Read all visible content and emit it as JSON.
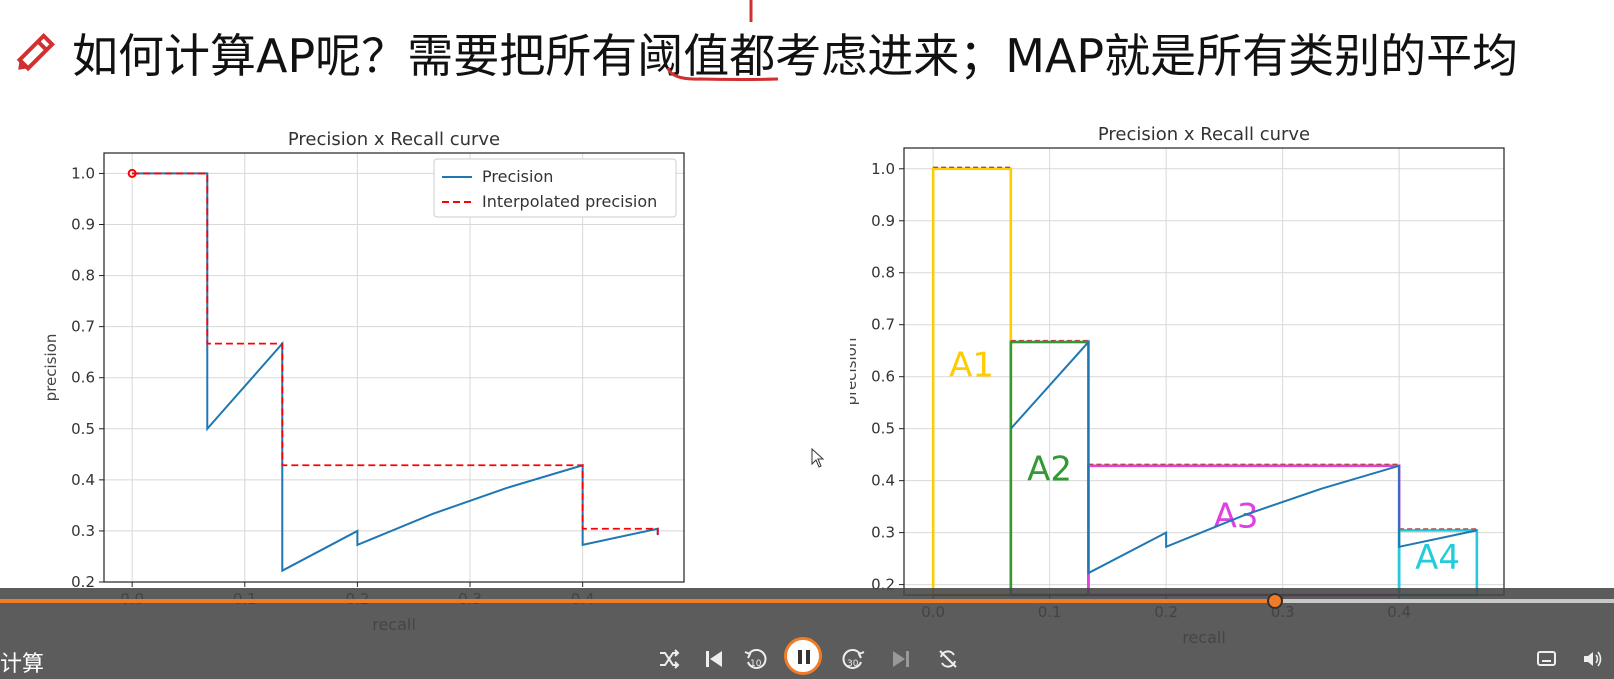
{
  "title": "如何计算AP呢？需要把所有阈值都考虑进来；MAP就是所有类别的平均",
  "player": {
    "video_title": "计算",
    "progress_fraction": 0.79,
    "rewind_label": "10",
    "forward_label": "30",
    "icons": [
      "shuffle-icon",
      "prev-icon",
      "rewind-10-icon",
      "pause-icon",
      "forward-30-icon",
      "next-icon",
      "loop-icon",
      "subtitle-icon",
      "volume-icon"
    ]
  },
  "colors": {
    "precision": "#1f77b4",
    "interpolated": "#ff0000",
    "a1": "#ffcc00",
    "a2": "#339933",
    "a3": "#e040e0",
    "a4": "#22ccdd",
    "accent": "#f07c28"
  },
  "chart_data": [
    {
      "type": "line",
      "title": "Precision x Recall curve",
      "xlabel": "recall",
      "ylabel": "precision",
      "xlim": [
        -0.025,
        0.49
      ],
      "ylim": [
        0.2,
        1.04
      ],
      "xticks": [
        "0.0",
        "0.1",
        "0.2",
        "0.3",
        "0.4"
      ],
      "yticks": [
        "0.2",
        "0.3",
        "0.4",
        "0.5",
        "0.6",
        "0.7",
        "0.8",
        "0.9",
        "1.0"
      ],
      "grid": true,
      "legend": "top-right",
      "series": [
        {
          "name": "Precision",
          "style": "solid",
          "x": [
            0,
            0.0667,
            0.0667,
            0.1333,
            0.1333,
            0.1333,
            0.2,
            0.2,
            0.2667,
            0.3333,
            0.4,
            0.4,
            0.4667,
            0.4667
          ],
          "y": [
            1.0,
            1.0,
            0.5,
            0.6667,
            0.4286,
            0.2222,
            0.3,
            0.2727,
            0.3333,
            0.3846,
            0.4286,
            0.2727,
            0.3043,
            0.2917
          ]
        },
        {
          "name": "Interpolated precision",
          "style": "dashed",
          "x": [
            0,
            0.0667,
            0.0667,
            0.1333,
            0.1333,
            0.4,
            0.4,
            0.4667,
            0.4667
          ],
          "y": [
            1.0,
            1.0,
            0.6667,
            0.6667,
            0.4286,
            0.4286,
            0.3043,
            0.3043,
            0.2917
          ]
        }
      ]
    },
    {
      "type": "line",
      "title": "Precision x Recall curve",
      "xlabel": "recall",
      "ylabel": "precision",
      "xlim": [
        -0.025,
        0.49
      ],
      "ylim": [
        0.18,
        1.04
      ],
      "xticks": [
        "0.0",
        "0.1",
        "0.2",
        "0.3",
        "0.4"
      ],
      "yticks": [
        "0.2",
        "0.3",
        "0.4",
        "0.5",
        "0.6",
        "0.7",
        "0.8",
        "0.9",
        "1.0"
      ],
      "grid": true,
      "areas": [
        {
          "label": "A1",
          "x0": 0,
          "x1": 0.0667,
          "height": 1.0
        },
        {
          "label": "A2",
          "x0": 0.0667,
          "x1": 0.1333,
          "height": 0.6667
        },
        {
          "label": "A3",
          "x0": 0.1333,
          "x1": 0.4,
          "height": 0.4286
        },
        {
          "label": "A4",
          "x0": 0.4,
          "x1": 0.4667,
          "height": 0.3043
        }
      ],
      "series": [
        {
          "style": "solid",
          "x": [
            0.0667,
            0.1333,
            0.1333,
            0.1333,
            0.2,
            0.2,
            0.2667,
            0.3333,
            0.4,
            0.4,
            0.4667
          ],
          "y": [
            0.5,
            0.6667,
            0.4286,
            0.2222,
            0.3,
            0.2727,
            0.3333,
            0.3846,
            0.4286,
            0.2727,
            0.3043
          ]
        }
      ]
    }
  ]
}
